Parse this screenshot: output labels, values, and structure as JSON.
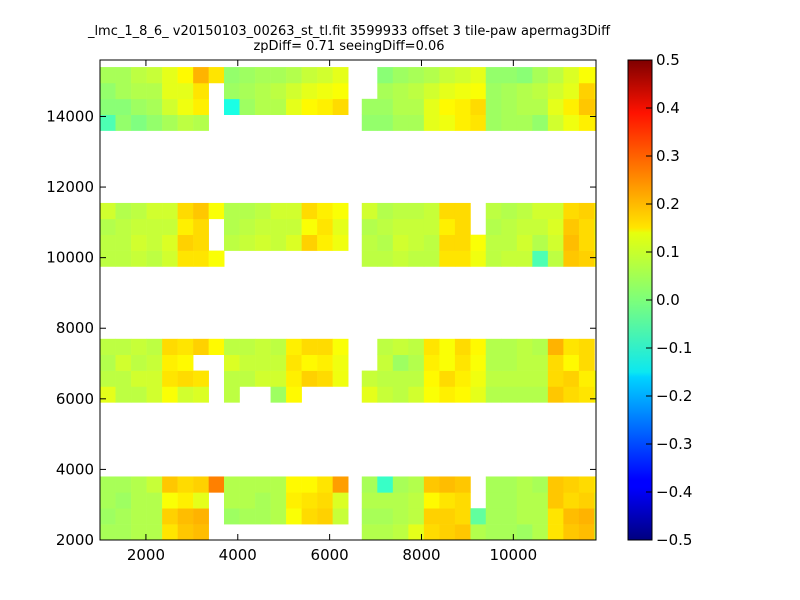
{
  "chart_data": {
    "type": "heatmap",
    "title_lines": [
      "_lmc_1_8_6_ v20150103_00263_st_tl.fit 3599933 offset 3 tile-paw apermag3Diff",
      "zpDiff= 0.71 seeingDiff=0.06"
    ],
    "xlabel": "",
    "ylabel": "",
    "xlim": [
      1000,
      11800
    ],
    "ylim": [
      2000,
      15600
    ],
    "x_ticks": [
      "2000",
      "4000",
      "6000",
      "8000",
      "10000"
    ],
    "y_ticks": [
      "2000",
      "4000",
      "6000",
      "8000",
      "10000",
      "12000",
      "14000"
    ],
    "colorbar": {
      "range": [
        -0.5,
        0.5
      ],
      "ticks": [
        "0.5",
        "0.4",
        "0.3",
        "0.2",
        "0.1",
        "0.0",
        "−0.1",
        "−0.2",
        "−0.3",
        "−0.4",
        "−0.5"
      ],
      "colormap": "jet"
    },
    "grid": false,
    "cell_size": [
      338,
      450
    ],
    "detectors": {
      "col_x0": [
        1000,
        3700,
        6700,
        9400
      ],
      "row_y0": [
        2000,
        5900,
        9750,
        13600
      ],
      "cells_x": 8,
      "cells_y": 4,
      "values": [
        [
          [
            [
              0.04,
              0.04,
              0.05,
              0.05,
              0.15,
              0.18,
              0.19,
              0.05
            ],
            [
              0.03,
              0.04,
              0.05,
              0.05,
              0.17,
              0.19,
              0.2,
              0.06
            ],
            [
              0.04,
              0.03,
              0.05,
              0.05,
              0.12,
              0.14,
              0.1,
              0.09
            ],
            [
              0.04,
              0.04,
              0.05,
              0.07,
              0.18,
              0.16,
              0.17,
              0.25
            ]
          ],
          [
            [
              0.1,
              0.06,
              0.06,
              0.08,
              0.12,
              0.08,
              0.09,
              0.08
            ],
            [
              0.06,
              0.06,
              0.08,
              0.08,
              0.15,
              0.16,
              0.15,
              0.1
            ],
            [
              0.05,
              0.08,
              0.06,
              0.07,
              0.14,
              0.13,
              0.13,
              0.11
            ],
            [
              0.06,
              0.06,
              0.07,
              0.06,
              0.16,
              0.15,
              0.17,
              0.13
            ]
          ],
          [
            [
              0.06,
              0.06,
              0.07,
              0.06,
              0.08,
              0.15,
              0.15,
              0.12
            ],
            [
              0.06,
              0.06,
              0.08,
              0.07,
              0.09,
              0.17,
              0.16,
              0.11
            ],
            [
              0.05,
              0.06,
              0.07,
              0.07,
              0.07,
              0.14,
              0.16,
              0.1
            ],
            [
              0.08,
              0.05,
              0.06,
              0.08,
              0.08,
              0.16,
              0.18,
              0.12
            ]
          ],
          [
            [
              -0.05,
              0.02,
              0.0,
              0.02,
              0.04,
              0.06,
              0.05,
              0.07
            ],
            [
              0.01,
              0.01,
              0.03,
              0.04,
              0.08,
              0.11,
              0.14,
              0.15
            ],
            [
              0.02,
              0.04,
              0.05,
              0.05,
              0.1,
              0.1,
              0.15,
              0.16
            ],
            [
              0.04,
              0.04,
              0.06,
              0.07,
              0.1,
              0.13,
              0.2,
              0.15
            ]
          ]
        ],
        [
          [
            [
              0.04,
              0.04,
              -0.04,
              0.05,
              0.13,
              0.14,
              0.15,
              0.05
            ],
            [
              0.03,
              0.04,
              0.04,
              0.05,
              0.12,
              0.16,
              0.17,
              0.07
            ],
            [
              0.05,
              0.05,
              0.04,
              0.05,
              0.14,
              0.15,
              0.16,
              0.09
            ],
            [
              0.05,
              0.05,
              0.05,
              0.05,
              0.13,
              0.13,
              0.15,
              0.22
            ]
          ],
          [
            [
              0.06,
              0.06,
              0.04,
              0.03,
              0.13,
              0.15,
              0.16,
              0.11
            ],
            [
              0.06,
              0.06,
              0.08,
              0.08,
              0.14,
              0.17,
              0.16,
              0.11
            ],
            [
              0.09,
              0.07,
              0.07,
              0.07,
              0.15,
              0.13,
              0.14,
              0.11
            ],
            [
              0.06,
              0.06,
              0.07,
              0.06,
              0.14,
              0.16,
              0.16,
              0.12
            ]
          ],
          [
            [
              0.06,
              0.06,
              0.07,
              0.06,
              0.07,
              0.15,
              0.15,
              0.12
            ],
            [
              0.06,
              0.07,
              0.08,
              0.07,
              0.09,
              0.17,
              0.14,
              0.11
            ],
            [
              0.05,
              0.06,
              0.07,
              0.07,
              0.07,
              0.12,
              0.15,
              0.1
            ],
            [
              0.05,
              0.05,
              0.06,
              0.08,
              0.08,
              0.16,
              0.14,
              0.12
            ]
          ],
          [
            [
              -0.08,
              0.02,
              0.01,
              0.02,
              0.08,
              0.11,
              0.14,
              0.15
            ],
            [
              -0.1,
              0.03,
              0.05,
              0.05,
              0.1,
              0.13,
              0.14,
              0.16
            ],
            [
              0.03,
              0.04,
              0.05,
              0.06,
              0.08,
              0.1,
              0.11,
              0.12
            ],
            [
              0.02,
              0.03,
              0.04,
              0.04,
              0.05,
              0.07,
              0.08,
              0.1
            ]
          ]
        ],
        [
          [
            [
              0.05,
              0.05,
              0.06,
              0.1,
              0.16,
              0.17,
              0.18,
              0.05
            ],
            [
              0.04,
              0.04,
              0.05,
              0.06,
              0.17,
              0.17,
              0.16,
              -0.03
            ],
            [
              0.05,
              0.05,
              0.05,
              0.06,
              0.13,
              0.15,
              0.16,
              0.08
            ],
            [
              0.04,
              -0.07,
              0.04,
              0.05,
              0.18,
              0.19,
              0.18,
              0.07
            ]
          ],
          [
            [
              0.1,
              0.07,
              0.06,
              0.08,
              0.12,
              0.14,
              0.13,
              0.1
            ],
            [
              0.07,
              0.06,
              0.06,
              0.06,
              0.13,
              0.16,
              0.14,
              0.11
            ],
            [
              0.08,
              0.07,
              0.03,
              0.05,
              0.14,
              0.12,
              0.15,
              0.12
            ],
            [
              0.07,
              0.06,
              0.07,
              0.06,
              0.15,
              0.12,
              0.16,
              0.13
            ]
          ],
          [
            [
              0.06,
              0.06,
              0.07,
              0.06,
              0.06,
              0.15,
              0.15,
              0.11
            ],
            [
              0.06,
              0.05,
              0.08,
              0.07,
              0.06,
              0.16,
              0.16,
              0.12
            ],
            [
              0.05,
              0.06,
              0.07,
              0.07,
              0.07,
              0.14,
              0.16,
              0.1
            ],
            [
              0.08,
              0.05,
              0.06,
              0.06,
              0.07,
              0.16,
              0.16,
              0.12
            ]
          ],
          [
            [
              0.02,
              0.02,
              0.04,
              0.04,
              0.1,
              0.11,
              0.14,
              0.15
            ],
            [
              0.03,
              0.03,
              0.05,
              0.05,
              0.1,
              0.13,
              0.14,
              0.16
            ],
            [
              0.03,
              0.04,
              0.05,
              0.06,
              0.08,
              0.1,
              0.11,
              0.12
            ],
            [
              0.01,
              0.01,
              0.03,
              0.04,
              0.05,
              0.07,
              0.08,
              0.1
            ]
          ]
        ],
        [
          [
            [
              0.04,
              0.04,
              0.03,
              0.05,
              0.15,
              0.18,
              0.19,
              0.06
            ],
            [
              0.04,
              0.04,
              0.05,
              0.05,
              0.15,
              0.19,
              0.2,
              0.06
            ],
            [
              0.04,
              0.04,
              0.05,
              0.05,
              0.18,
              0.16,
              0.17,
              0.09
            ],
            [
              0.04,
              0.04,
              0.05,
              0.04,
              0.18,
              0.17,
              0.16,
              0.13
            ]
          ],
          [
            [
              0.05,
              0.05,
              0.05,
              0.05,
              0.18,
              0.16,
              0.15,
              0.1
            ],
            [
              0.06,
              0.06,
              0.06,
              0.06,
              0.16,
              0.17,
              0.14,
              0.1
            ],
            [
              0.05,
              0.05,
              0.06,
              0.06,
              0.16,
              0.13,
              0.16,
              0.11
            ],
            [
              0.05,
              0.05,
              0.06,
              0.05,
              0.2,
              0.15,
              0.16,
              0.14
            ]
          ],
          [
            [
              0.06,
              0.07,
              0.07,
              -0.05,
              0.06,
              0.18,
              0.17,
              0.12
            ],
            [
              0.06,
              0.06,
              0.08,
              0.05,
              0.08,
              0.19,
              0.16,
              0.11
            ],
            [
              0.05,
              0.06,
              0.07,
              0.07,
              0.09,
              0.18,
              0.16,
              0.1
            ],
            [
              0.06,
              0.05,
              0.06,
              0.08,
              0.08,
              0.16,
              0.17,
              0.12
            ]
          ],
          [
            [
              0.03,
              0.04,
              0.04,
              0.02,
              0.08,
              0.11,
              0.14,
              0.15
            ],
            [
              0.03,
              0.04,
              0.05,
              0.05,
              0.1,
              0.14,
              0.18,
              0.16
            ],
            [
              0.03,
              0.04,
              0.05,
              0.06,
              0.08,
              0.1,
              0.17,
              0.14
            ],
            [
              0.02,
              0.02,
              0.01,
              0.04,
              0.06,
              0.09,
              0.12,
              0.12
            ]
          ]
        ]
      ]
    },
    "masked_cells": [
      "0,0,1,7",
      "0,0,2,7",
      "0,0,0,7",
      "0,1,0,7",
      "0,1,1,7",
      "0,1,2,6",
      "0,1,2,7",
      "0,2,1,7",
      "0,2,2,7",
      "0,3,1,7",
      "0,3,2,7",
      "0,3,0,7",
      "1,0,0,0",
      "1,0,0,1",
      "1,0,0,2",
      "1,0,0,3",
      "1,0,0,4",
      "1,0,0,5",
      "1,0,0,6",
      "1,0,0,7",
      "1,1,0,1",
      "1,1,0,2",
      "1,1,0,5",
      "1,1,0,6",
      "1,1,0,7",
      "1,2,0,0",
      "1,2,0,1",
      "1,2,0,2",
      "1,2,0,3",
      "1,2,0,4",
      "1,2,0,5",
      "1,2,0,6",
      "1,2,0,7",
      "1,3,0,0",
      "1,3,0,1",
      "1,3,0,2",
      "1,3,0,3",
      "1,3,0,4",
      "1,3,0,5",
      "1,3,0,6",
      "1,3,0,7",
      "2,0,2,7",
      "2,0,3,7",
      "2,1,2,0",
      "2,1,3,0",
      "2,3,2,0",
      "2,3,3,0",
      "3,1,2,7",
      "3,1,3,7",
      "2,2,2,7",
      "2,2,3,7"
    ]
  }
}
